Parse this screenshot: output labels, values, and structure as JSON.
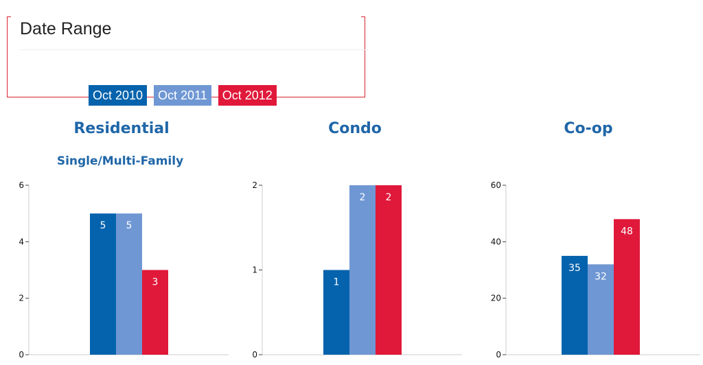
{
  "date_range": {
    "title": "Date Range",
    "legend": [
      {
        "label": "Oct 2010",
        "color": "#0563ad"
      },
      {
        "label": "Oct 2011",
        "color": "#6f97d3"
      },
      {
        "label": "Oct 2012",
        "color": "#e0183a"
      }
    ]
  },
  "chart_data": [
    {
      "type": "bar",
      "title": "Residential",
      "subtitle": "Single/Multi-Family",
      "categories": [
        "Oct 2010",
        "Oct 2011",
        "Oct 2012"
      ],
      "values": [
        5,
        5,
        3
      ],
      "ylim": [
        0,
        6
      ],
      "yticks": [
        0,
        2,
        4,
        6
      ]
    },
    {
      "type": "bar",
      "title": "Condo",
      "subtitle": "",
      "categories": [
        "Oct 2010",
        "Oct 2011",
        "Oct 2012"
      ],
      "values": [
        1,
        2,
        2
      ],
      "ylim": [
        0,
        2
      ],
      "yticks": [
        0,
        1,
        2
      ]
    },
    {
      "type": "bar",
      "title": "Co-op",
      "subtitle": "",
      "categories": [
        "Oct 2010",
        "Oct 2011",
        "Oct 2012"
      ],
      "values": [
        35,
        32,
        48
      ],
      "ylim": [
        0,
        60
      ],
      "yticks": [
        0,
        20,
        40,
        60
      ]
    }
  ]
}
